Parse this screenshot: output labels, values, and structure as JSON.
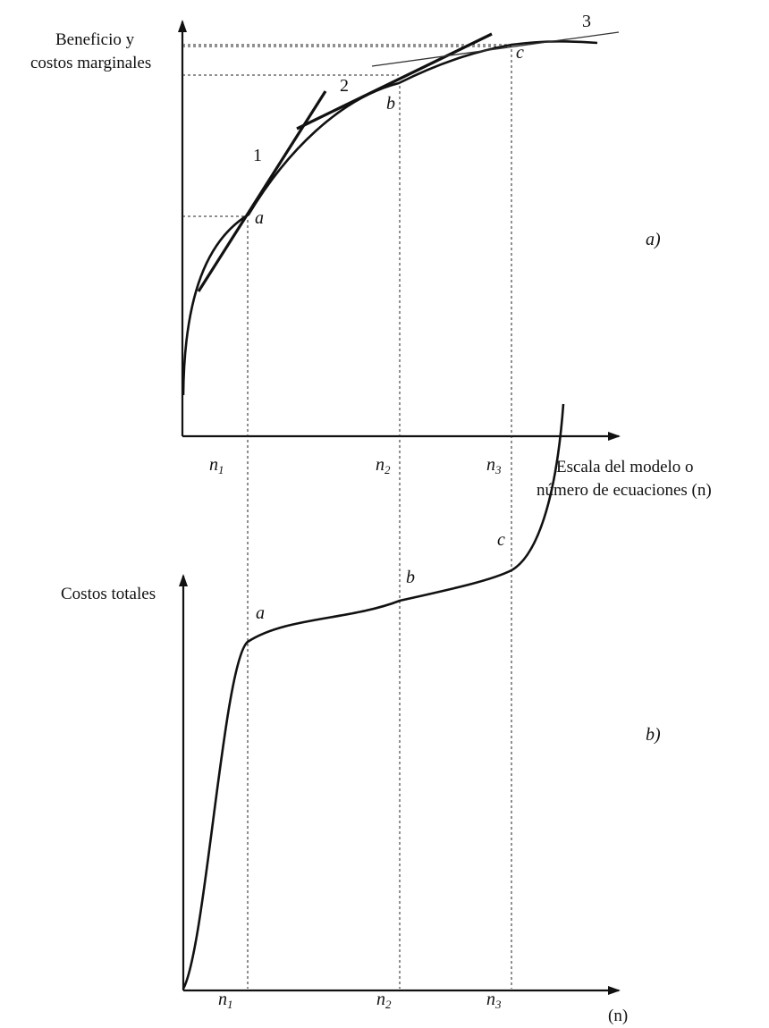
{
  "panel_a": {
    "y_label_line1": "Beneficio y",
    "y_label_line2": "costos marginales",
    "x_label_line1": "Escala del modelo o",
    "x_label_line2": "número de ecuaciones (n)",
    "points": [
      "a",
      "b",
      "c"
    ],
    "tangent_labels": [
      "1",
      "2",
      "3"
    ],
    "ticks": [
      {
        "base": "n",
        "sub": "1"
      },
      {
        "base": "n",
        "sub": "2"
      },
      {
        "base": "n",
        "sub": "3"
      }
    ],
    "panel_label": "a)"
  },
  "panel_b": {
    "y_label": "Costos totales",
    "x_label": "(n)",
    "points": [
      "a",
      "b",
      "c"
    ],
    "ticks": [
      {
        "base": "n",
        "sub": "1"
      },
      {
        "base": "n",
        "sub": "2"
      },
      {
        "base": "n",
        "sub": "3"
      }
    ],
    "panel_label": "b)"
  },
  "colors": {
    "ink": "#111111",
    "background": "#ffffff"
  },
  "icons": [
    "arrow-up-icon",
    "arrow-right-icon"
  ]
}
